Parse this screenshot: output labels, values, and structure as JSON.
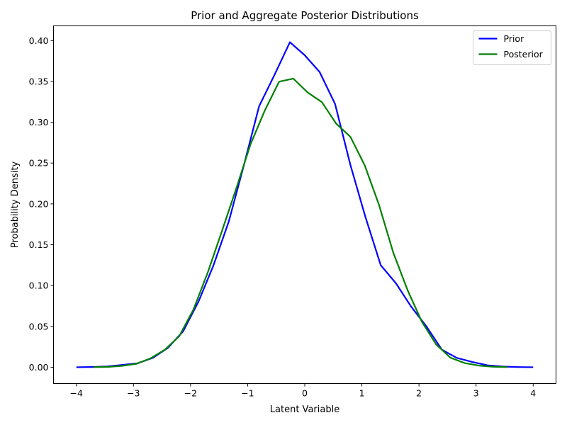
{
  "chart_data": {
    "type": "line",
    "title": "Prior and Aggregate Posterior Distributions",
    "xlabel": "Latent Variable",
    "ylabel": "Probability Density",
    "xlim": [
      -4.4,
      4.4
    ],
    "ylim": [
      -0.02,
      0.418
    ],
    "xticks": [
      -4,
      -3,
      -2,
      -1,
      0,
      1,
      2,
      3,
      4
    ],
    "xtick_labels": [
      "−4",
      "−3",
      "−2",
      "−1",
      "0",
      "1",
      "2",
      "3",
      "4"
    ],
    "yticks": [
      0.0,
      0.05,
      0.1,
      0.15,
      0.2,
      0.25,
      0.3,
      0.35,
      0.4
    ],
    "ytick_labels": [
      "0.00",
      "0.05",
      "0.10",
      "0.15",
      "0.20",
      "0.25",
      "0.30",
      "0.35",
      "0.40"
    ],
    "grid": false,
    "legend_position": "top-right",
    "series": [
      {
        "name": "Prior",
        "color": "#0000ff",
        "x": [
          -4.0,
          -3.73,
          -3.46,
          -3.2,
          -2.93,
          -2.66,
          -2.4,
          -2.13,
          -1.86,
          -1.6,
          -1.33,
          -1.06,
          -0.8,
          -0.53,
          -0.26,
          0.0,
          0.26,
          0.53,
          0.8,
          1.06,
          1.33,
          1.6,
          1.86,
          2.13,
          2.4,
          2.66,
          2.93,
          3.2,
          3.46,
          3.73,
          4.0
        ],
        "y": [
          0.0,
          0.0003,
          0.0009,
          0.0028,
          0.0048,
          0.0115,
          0.0235,
          0.044,
          0.0805,
          0.1245,
          0.1785,
          0.249,
          0.3195,
          0.358,
          0.398,
          0.382,
          0.3615,
          0.3225,
          0.2475,
          0.1845,
          0.125,
          0.1025,
          0.0745,
          0.05,
          0.0215,
          0.0115,
          0.0065,
          0.0024,
          0.0008,
          0.0002,
          0.0
        ]
      },
      {
        "name": "Posterior",
        "color": "#008000",
        "x": [
          -3.7,
          -3.45,
          -3.2,
          -2.95,
          -2.7,
          -2.45,
          -2.2,
          -1.95,
          -1.7,
          -1.45,
          -1.2,
          -0.95,
          -0.7,
          -0.45,
          -0.2,
          0.05,
          0.3,
          0.55,
          0.8,
          1.05,
          1.3,
          1.55,
          1.8,
          2.05,
          2.3,
          2.55,
          2.8,
          3.05,
          3.3,
          3.55
        ],
        "y": [
          0.0001,
          0.0004,
          0.0017,
          0.0041,
          0.0109,
          0.0215,
          0.0378,
          0.0705,
          0.1157,
          0.1668,
          0.2188,
          0.273,
          0.3143,
          0.3496,
          0.3534,
          0.3365,
          0.3246,
          0.2983,
          0.2821,
          0.2472,
          0.1988,
          0.1403,
          0.0945,
          0.0558,
          0.028,
          0.0117,
          0.0051,
          0.002,
          0.0006,
          0.0001
        ]
      }
    ]
  }
}
